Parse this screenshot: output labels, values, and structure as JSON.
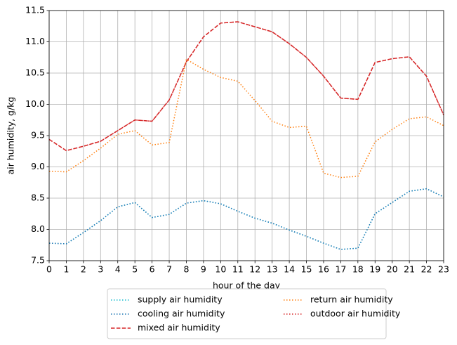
{
  "chart_data": {
    "type": "line",
    "xlabel": "hour of the day",
    "ylabel": "air humidity, g/kg",
    "x": [
      0,
      1,
      2,
      3,
      4,
      5,
      6,
      7,
      8,
      9,
      10,
      11,
      12,
      13,
      14,
      15,
      16,
      17,
      18,
      19,
      20,
      21,
      22,
      23
    ],
    "xlim": [
      0,
      23
    ],
    "xticks": [
      0,
      1,
      2,
      3,
      4,
      5,
      6,
      7,
      8,
      9,
      10,
      11,
      12,
      13,
      14,
      15,
      16,
      17,
      18,
      19,
      20,
      21,
      22,
      23
    ],
    "ylim": [
      7.5,
      11.5
    ],
    "yticks": [
      7.5,
      {
        "value": 8,
        "label": "8.0"
      },
      8.5,
      {
        "value": 9,
        "label": "9.0"
      },
      9.5,
      {
        "value": 10,
        "label": "10.0"
      },
      10.5,
      {
        "value": 11,
        "label": "11.0"
      },
      11.5
    ],
    "grid": true,
    "legend": "lower center",
    "series": [
      {
        "name": "supply air humidity",
        "color": "#17becf",
        "style": "dotted",
        "values": [
          7.78,
          7.77,
          7.95,
          8.14,
          8.36,
          8.43,
          8.19,
          8.24,
          8.42,
          8.46,
          8.41,
          8.29,
          8.18,
          8.1,
          7.99,
          7.89,
          7.78,
          7.68,
          7.7,
          8.25,
          8.43,
          8.61,
          8.65,
          8.52
        ]
      },
      {
        "name": "cooling air humidity",
        "color": "#1f77b4",
        "style": "dotted",
        "values": [
          7.78,
          7.77,
          7.95,
          8.14,
          8.36,
          8.43,
          8.19,
          8.24,
          8.42,
          8.46,
          8.41,
          8.29,
          8.18,
          8.1,
          7.99,
          7.89,
          7.78,
          7.68,
          7.7,
          8.25,
          8.43,
          8.61,
          8.65,
          8.52
        ]
      },
      {
        "name": "mixed air humidity",
        "color": "#d62728",
        "style": "dashed",
        "values": [
          9.44,
          9.26,
          9.33,
          9.41,
          9.58,
          9.75,
          9.73,
          10.07,
          10.68,
          11.08,
          11.3,
          11.32,
          11.24,
          11.16,
          10.97,
          10.75,
          10.45,
          10.1,
          10.08,
          10.67,
          10.73,
          10.76,
          10.45,
          9.83
        ]
      },
      {
        "name": "return air humidity",
        "color": "#ff7f0e",
        "style": "dotted",
        "values": [
          8.93,
          8.92,
          9.1,
          9.3,
          9.52,
          9.58,
          9.35,
          9.39,
          10.72,
          10.56,
          10.43,
          10.37,
          10.06,
          9.73,
          9.63,
          9.65,
          8.9,
          8.83,
          8.85,
          9.4,
          9.6,
          9.77,
          9.8,
          9.66
        ]
      },
      {
        "name": "outdoor air humidity",
        "color": "#d62728",
        "style": "dotted",
        "values": [
          9.44,
          9.26,
          9.33,
          9.41,
          9.58,
          9.75,
          9.73,
          10.07,
          10.68,
          11.08,
          11.3,
          11.32,
          11.24,
          11.16,
          10.97,
          10.75,
          10.45,
          10.1,
          10.08,
          10.67,
          10.73,
          10.76,
          10.45,
          9.83
        ]
      }
    ]
  }
}
